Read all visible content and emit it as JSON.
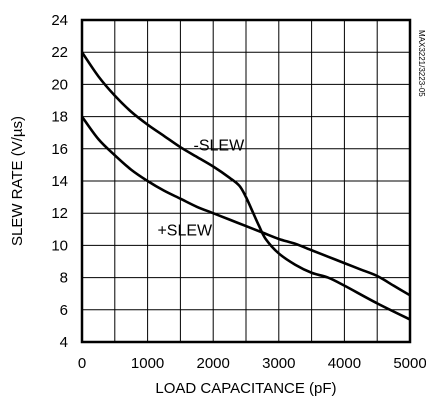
{
  "chart_data": {
    "type": "line",
    "title": "",
    "xlabel": "LOAD CAPACITANCE (pF)",
    "ylabel": "SLEW RATE (V/µs)",
    "xlim": [
      0,
      5000
    ],
    "ylim": [
      4,
      24
    ],
    "x_ticks": [
      0,
      1000,
      2000,
      3000,
      4000,
      5000
    ],
    "y_ticks": [
      4,
      6,
      8,
      10,
      12,
      14,
      16,
      18,
      20,
      22,
      24
    ],
    "x_tick_labels": [
      "0",
      "1000",
      "2000",
      "3000",
      "4000",
      "5000"
    ],
    "y_tick_labels": [
      "4",
      "6",
      "8",
      "10",
      "12",
      "14",
      "16",
      "18",
      "20",
      "22",
      "24"
    ],
    "grid": true,
    "grid_x_step": 500,
    "grid_y_step": 2,
    "figure_code": "MAX3221/3223-05",
    "series": [
      {
        "name": "-SLEW",
        "color": "#000000",
        "x": [
          0,
          250,
          500,
          750,
          1000,
          1250,
          1500,
          1750,
          2000,
          2250,
          2400,
          2500,
          2600,
          2700,
          2800,
          3000,
          3250,
          3500,
          3750,
          4000,
          4500,
          5000
        ],
        "y": [
          22.0,
          20.5,
          19.3,
          18.3,
          17.5,
          16.8,
          16.1,
          15.5,
          14.9,
          14.2,
          13.7,
          13.0,
          12.1,
          11.2,
          10.4,
          9.5,
          8.8,
          8.3,
          8.0,
          7.5,
          6.4,
          5.4
        ]
      },
      {
        "name": "+SLEW",
        "color": "#000000",
        "x": [
          0,
          250,
          500,
          750,
          1000,
          1250,
          1500,
          1750,
          2000,
          2250,
          2500,
          2750,
          3000,
          3250,
          3500,
          3750,
          4000,
          4250,
          4500,
          4750,
          5000
        ],
        "y": [
          18.0,
          16.6,
          15.6,
          14.7,
          14.0,
          13.4,
          12.9,
          12.4,
          12.0,
          11.6,
          11.2,
          10.8,
          10.4,
          10.1,
          9.7,
          9.3,
          8.9,
          8.5,
          8.1,
          7.5,
          6.9
        ]
      }
    ],
    "annotations": [
      {
        "text": "-SLEW",
        "x": 1700,
        "y": 15.9
      },
      {
        "text": "+SLEW",
        "x": 1150,
        "y": 10.6
      }
    ]
  }
}
